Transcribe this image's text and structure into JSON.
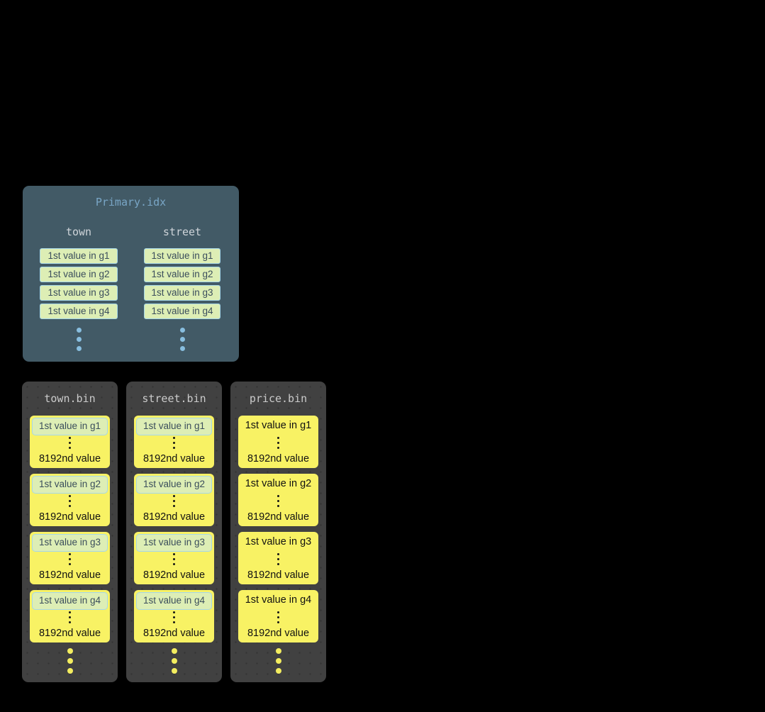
{
  "colors": {
    "background": "#000000",
    "primary_box": "#425a66",
    "primary_title": "#79a6c6",
    "column_header": "#ced4d9",
    "index_cell_bg": "#ddeeb5",
    "index_cell_border": "#a6d7e8",
    "index_cell_text": "#3a4d5c",
    "blue_dots": "#88bedf",
    "bin_box": "#414141",
    "bin_title": "#cbcbcb",
    "granule_bg": "#f8f264",
    "granule_text": "#111111",
    "yellow_dots": "#f3ed5f"
  },
  "primary_index": {
    "title": "Primary.idx",
    "columns": [
      {
        "name": "town",
        "cells": [
          "1st value in g1",
          "1st value in g2",
          "1st value in g3",
          "1st value in g4"
        ]
      },
      {
        "name": "street",
        "cells": [
          "1st value in g1",
          "1st value in g2",
          "1st value in g3",
          "1st value in g4"
        ]
      }
    ]
  },
  "bin_files": [
    {
      "title": "town.bin",
      "first_value_highlighted": true,
      "groups": [
        {
          "first": "1st value in g1",
          "last": "8192nd value"
        },
        {
          "first": "1st value in g2",
          "last": "8192nd value"
        },
        {
          "first": "1st value in g3",
          "last": "8192nd value"
        },
        {
          "first": "1st value in g4",
          "last": "8192nd value"
        }
      ]
    },
    {
      "title": "street.bin",
      "first_value_highlighted": true,
      "groups": [
        {
          "first": "1st value in g1",
          "last": "8192nd value"
        },
        {
          "first": "1st value in g2",
          "last": "8192nd value"
        },
        {
          "first": "1st value in g3",
          "last": "8192nd value"
        },
        {
          "first": "1st value in g4",
          "last": "8192nd value"
        }
      ]
    },
    {
      "title": "price.bin",
      "first_value_highlighted": false,
      "groups": [
        {
          "first": "1st value in g1",
          "last": "8192nd value"
        },
        {
          "first": "1st value in g2",
          "last": "8192nd value"
        },
        {
          "first": "1st value in g3",
          "last": "8192nd value"
        },
        {
          "first": "1st value in g4",
          "last": "8192nd value"
        }
      ]
    }
  ]
}
